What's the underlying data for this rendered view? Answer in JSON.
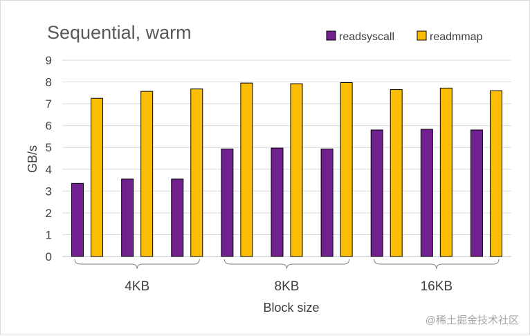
{
  "chart_data": {
    "type": "bar",
    "title": "Sequential, warm",
    "ylabel": "GB/s",
    "xlabel": "Block size",
    "ylim": [
      0,
      9
    ],
    "yticks": [
      0,
      1,
      2,
      3,
      4,
      5,
      6,
      7,
      8,
      9
    ],
    "grid": true,
    "legend_position": "top-right",
    "groups": [
      "4KB",
      "8KB",
      "16KB"
    ],
    "runs_per_group": 3,
    "series": [
      {
        "name": "readsyscall",
        "color": "#70218f",
        "values": [
          3.35,
          3.55,
          3.55,
          4.93,
          4.97,
          4.93,
          5.8,
          5.83,
          5.8
        ]
      },
      {
        "name": "readmmap",
        "color": "#fbbd01",
        "values": [
          7.25,
          7.57,
          7.68,
          7.95,
          7.92,
          7.97,
          7.65,
          7.72,
          7.6
        ]
      }
    ]
  },
  "watermark": "@稀土掘金技术社区"
}
